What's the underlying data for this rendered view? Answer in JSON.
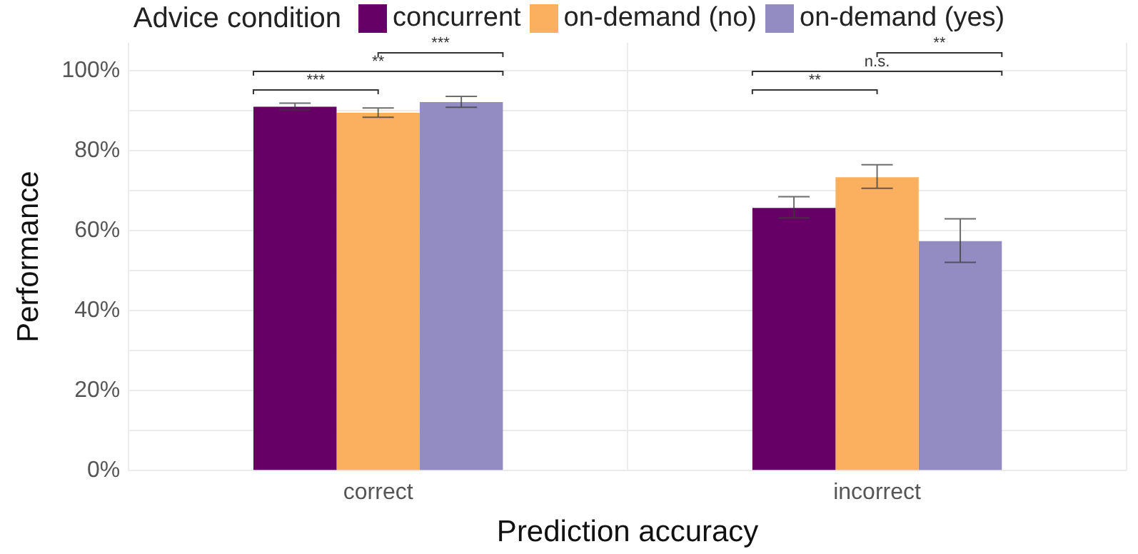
{
  "chart_data": {
    "type": "bar",
    "xlabel": "Prediction accuracy",
    "ylabel": "Performance",
    "legend_title": "Advice condition",
    "legend": "top",
    "categories": [
      "correct",
      "incorrect"
    ],
    "series": [
      {
        "name": "concurrent",
        "color": "#660066",
        "values": [
          91.0,
          65.7
        ],
        "errors": [
          [
            90.3,
            91.9
          ],
          [
            63.2,
            68.5
          ]
        ]
      },
      {
        "name": "on-demand (no)",
        "color": "#fbb05f",
        "values": [
          89.5,
          73.4
        ],
        "errors": [
          [
            88.4,
            90.7
          ],
          [
            70.6,
            76.5
          ]
        ]
      },
      {
        "name": "on-demand (yes)",
        "color": "#938cc2",
        "values": [
          92.2,
          57.4
        ],
        "errors": [
          [
            90.9,
            93.6
          ],
          [
            52.1,
            63.0
          ]
        ]
      }
    ],
    "ylim": [
      0,
      107
    ],
    "yticks": [
      {
        "value": 0,
        "label": "0%"
      },
      {
        "value": 10,
        "label": null
      },
      {
        "value": 20,
        "label": "20%"
      },
      {
        "value": 30,
        "label": null
      },
      {
        "value": 40,
        "label": "40%"
      },
      {
        "value": 50,
        "label": null
      },
      {
        "value": 60,
        "label": "60%"
      },
      {
        "value": 70,
        "label": null
      },
      {
        "value": 80,
        "label": "80%"
      },
      {
        "value": 90,
        "label": null
      },
      {
        "value": 100,
        "label": "100%"
      }
    ],
    "grid": true,
    "annotations": [
      "***",
      "**",
      "***",
      "**",
      "n.s.",
      "**"
    ]
  }
}
